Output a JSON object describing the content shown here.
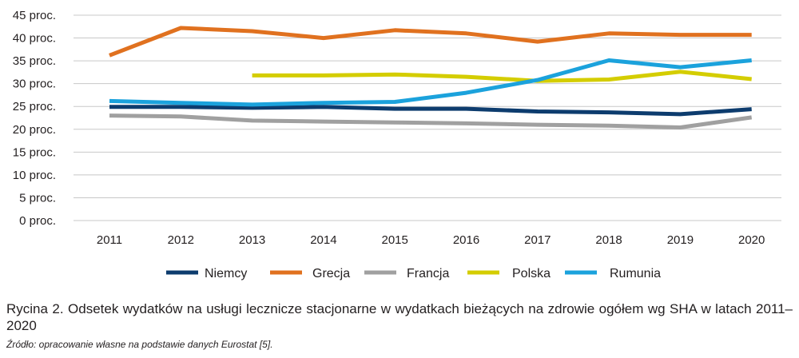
{
  "chart_data": {
    "type": "line",
    "categories": [
      "2011",
      "2012",
      "2013",
      "2014",
      "2015",
      "2016",
      "2017",
      "2018",
      "2019",
      "2020"
    ],
    "y_tick_labels": [
      "0 proc.",
      "5 proc.",
      "10 proc.",
      "15 proc.",
      "20 proc.",
      "25 proc.",
      "30 proc.",
      "35 proc.",
      "40 proc.",
      "45 proc."
    ],
    "ylim": [
      0,
      45
    ],
    "y_tick_step": 5,
    "grid": true,
    "legend_position": "bottom",
    "series": [
      {
        "name": "Niemcy",
        "color": "#0d3c6e",
        "values": [
          24.9,
          24.9,
          24.7,
          24.9,
          24.5,
          24.5,
          23.9,
          23.7,
          23.3,
          24.4
        ]
      },
      {
        "name": "Grecja",
        "color": "#e0711f",
        "values": [
          36.2,
          42.2,
          41.5,
          40.0,
          41.7,
          41.0,
          39.2,
          41.0,
          40.7,
          40.7
        ]
      },
      {
        "name": "Francja",
        "color": "#a0a0a0",
        "values": [
          23.0,
          22.8,
          21.9,
          21.7,
          21.5,
          21.3,
          21.0,
          20.8,
          20.4,
          22.6
        ]
      },
      {
        "name": "Polska",
        "color": "#d4cd00",
        "values": [
          null,
          null,
          31.8,
          31.8,
          32.0,
          31.5,
          30.6,
          30.9,
          32.6,
          31.0
        ]
      },
      {
        "name": "Rumunia",
        "color": "#1ba2dc",
        "values": [
          26.2,
          25.8,
          25.4,
          25.8,
          26.0,
          28.0,
          30.8,
          35.1,
          33.6,
          35.1
        ]
      }
    ]
  },
  "caption": {
    "label": "Rycina 2.",
    "text": " Odsetek wydatków na usługi lecznicze stacjonarne w wydatkach bieżących na zdrowie ogółem wg SHA w latach 2011–2020"
  },
  "source": "Źródło: opracowanie własne na podstawie danych Eurostat [5]."
}
